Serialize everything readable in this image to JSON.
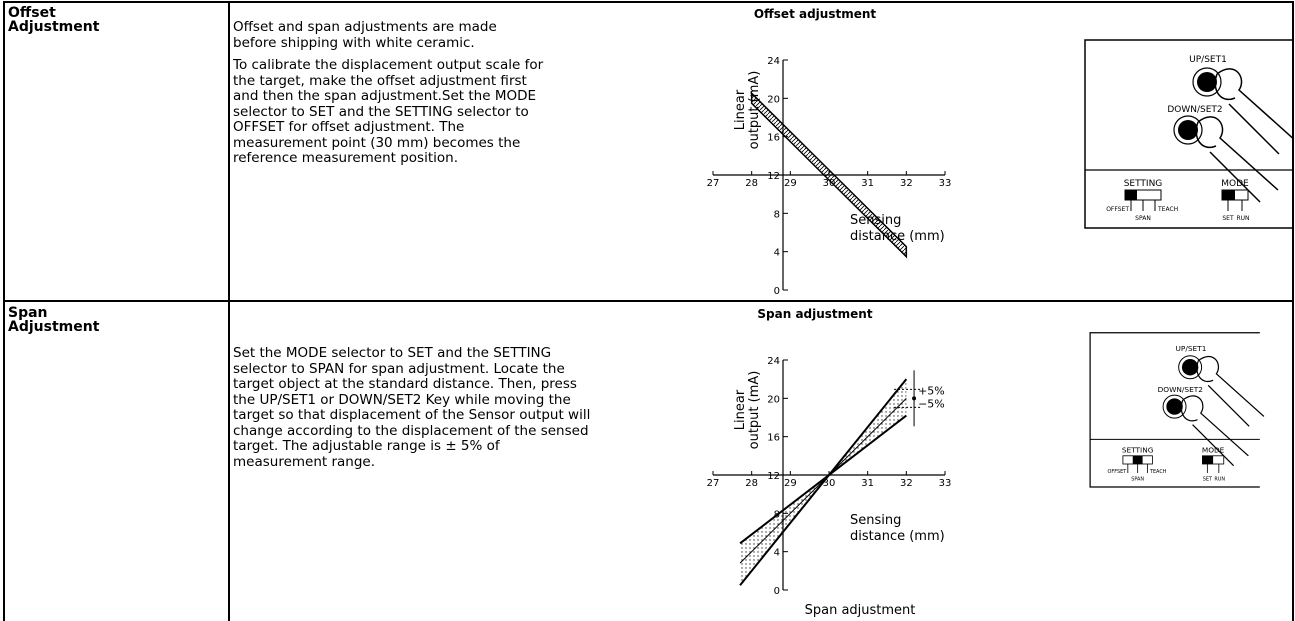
{
  "rows": [
    {
      "label": [
        "Offset",
        "Adjustment"
      ],
      "paragraphs": [
        [
          "Offset and span adjustments are made",
          "before shipping with white ceramic."
        ],
        [
          "To calibrate the displacement output scale for",
          "the target, make the offset adjustment first",
          "and then the span adjustment.Set the MODE",
          "selector to SET and the SETTING selector to",
          "OFFSET for offset adjustment. The",
          "measurement point (30 mm) becomes the",
          "reference measurement position."
        ]
      ],
      "graph": {
        "title": "Offset adjustment",
        "y_label": [
          "Linear",
          "output (mA)"
        ],
        "x_label": [
          "Sensing",
          "distance (mm)"
        ],
        "x_ticks": [
          27,
          28,
          29,
          30,
          31,
          32,
          33
        ],
        "y_ticks": [
          0,
          4,
          8,
          12,
          16,
          20,
          24
        ]
      },
      "panel": {
        "up": "UP/SET1",
        "down": "DOWN/SET2",
        "setting": "SETTING",
        "mode": "MODE",
        "offset": "OFFSET",
        "span": "SPAN",
        "teach": "TEACH",
        "set": "SET",
        "run": "RUN"
      }
    },
    {
      "label": [
        "Span",
        "Adjustment"
      ],
      "paragraphs": [
        [
          "Set the MODE selector to SET and the SETTING",
          "selector to SPAN for span adjustment. Locate the",
          "target object at the standard distance. Then, press",
          "the UP/SET1 or DOWN/SET2 Key while moving the",
          "target so that displacement of the Sensor output will",
          "change according to the displacement of the sensed",
          "target. The adjustable range is ± 5% of",
          "measurement range."
        ]
      ],
      "graph": {
        "title": "Span adjustment",
        "y_label": [
          "Linear",
          "output (mA)"
        ],
        "x_label": [
          "Sensing",
          "distance (mm)"
        ],
        "x_ticks": [
          27,
          28,
          29,
          30,
          31,
          32,
          33
        ],
        "y_ticks": [
          0,
          4,
          8,
          12,
          16,
          20,
          24
        ],
        "plus_label": "+5%",
        "minus_label": "−5%"
      },
      "panel": {
        "up": "UP/SET1",
        "down": "DOWN/SET2",
        "setting": "SETTING",
        "mode": "MODE",
        "offset": "OFFSET",
        "span": "SPAN",
        "teach": "TEACH",
        "set": "SET",
        "run": "RUN"
      },
      "caption": "Span adjustment"
    }
  ]
}
